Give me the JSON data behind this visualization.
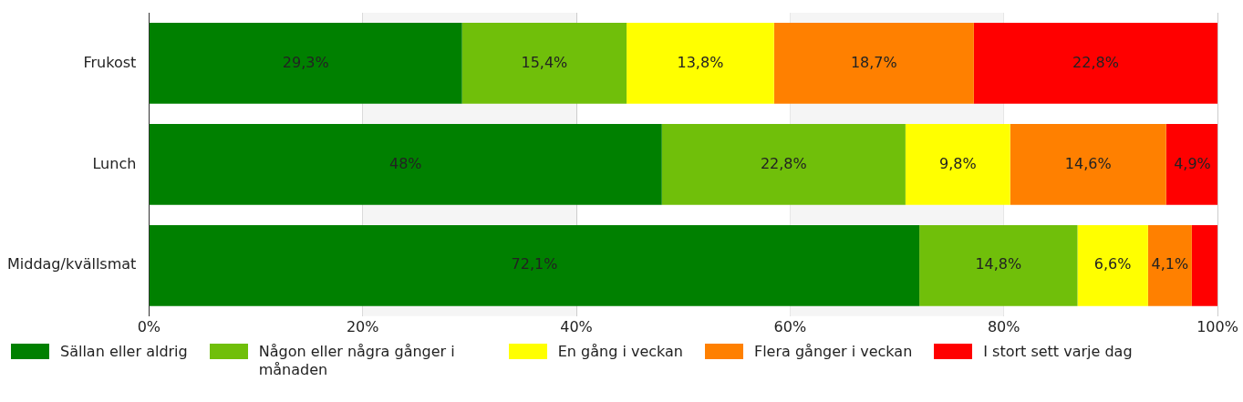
{
  "chart_data": {
    "type": "bar",
    "orientation": "horizontal",
    "stacked": true,
    "categories": [
      "Frukost",
      "Lunch",
      "Middag/kvällsmat"
    ],
    "series": [
      {
        "name": "Sällan eller aldrig",
        "color": "#008000",
        "values": [
          29.3,
          48,
          72.1
        ],
        "value_labels": [
          "29,3%",
          "48%",
          "72,1%"
        ]
      },
      {
        "name": "Någon eller några gånger i månaden",
        "color": "#70bf0a",
        "values": [
          15.4,
          22.8,
          14.8
        ],
        "value_labels": [
          "15,4%",
          "22,8%",
          "14,8%"
        ]
      },
      {
        "name": "En gång i veckan",
        "color": "#ffff00",
        "values": [
          13.8,
          9.8,
          6.6
        ],
        "value_labels": [
          "13,8%",
          "9,8%",
          "6,6%"
        ]
      },
      {
        "name": "Flera gånger i veckan",
        "color": "#ff8000",
        "values": [
          18.7,
          14.6,
          4.1
        ],
        "value_labels": [
          "18,7%",
          "14,6%",
          "4,1%"
        ]
      },
      {
        "name": "I stort sett varje dag",
        "color": "#ff0000",
        "values": [
          22.8,
          4.9,
          2.4
        ],
        "value_labels": [
          "22,8%",
          "4,9%",
          null
        ]
      }
    ],
    "xlim": [
      0,
      100
    ],
    "xticks": [
      {
        "value": 0,
        "label": "0%"
      },
      {
        "value": 20,
        "label": "20%"
      },
      {
        "value": 40,
        "label": "40%"
      },
      {
        "value": 60,
        "label": "60%"
      },
      {
        "value": 80,
        "label": "80%"
      },
      {
        "value": 100,
        "label": "100%"
      }
    ],
    "bands": [
      {
        "axis": "x",
        "from": 20,
        "to": 40,
        "color": "#f5f5f5"
      },
      {
        "axis": "x",
        "from": 60,
        "to": 80,
        "color": "#f5f5f5"
      }
    ],
    "grid": "x",
    "legend": "bottom"
  }
}
